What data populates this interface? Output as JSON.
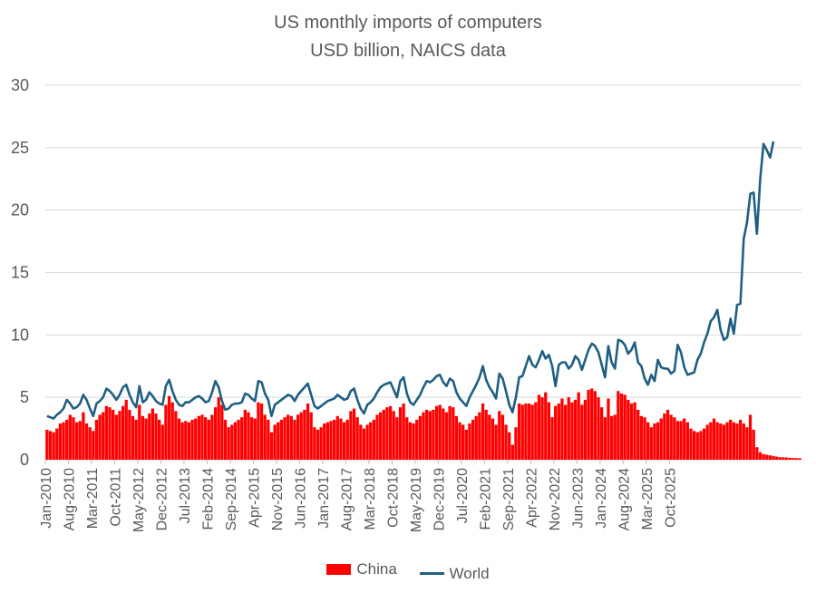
{
  "chart_data": {
    "type": "bar+line",
    "title": "US monthly imports of computers",
    "subtitle": "USD billion, NAICS data",
    "ylim": [
      0,
      30
    ],
    "yticks": [
      0,
      5,
      10,
      15,
      20,
      25,
      30
    ],
    "grid": true,
    "legend_position": "bottom",
    "start": "2010-01",
    "x_tick_labels": [
      "Jan-2010",
      "Aug-2010",
      "Mar-2011",
      "Oct-2011",
      "May-2012",
      "Dec-2012",
      "Jul-2013",
      "Feb-2014",
      "Sep-2014",
      "Apr-2015",
      "Nov-2015",
      "Jun-2016",
      "Jan-2017",
      "Aug-2017",
      "Mar-2018",
      "Oct-2018",
      "May-2019",
      "Dec-2019",
      "Jul-2020",
      "Feb-2021",
      "Sep-2021",
      "Apr-2022",
      "Nov-2022",
      "Jun-2023",
      "Jan-2024",
      "Aug-2024",
      "Mar-2025",
      "Oct-2025"
    ],
    "x_tick_step_months": 7,
    "series": [
      {
        "name": "China",
        "kind": "bar",
        "color": "#ff0000",
        "values": [
          2.4,
          2.3,
          2.2,
          2.5,
          2.9,
          3.0,
          3.2,
          3.6,
          3.4,
          3.0,
          3.1,
          3.8,
          2.9,
          2.6,
          2.3,
          3.2,
          3.6,
          3.8,
          4.3,
          4.2,
          4.0,
          3.6,
          3.9,
          4.3,
          4.8,
          4.0,
          3.5,
          3.2,
          4.4,
          3.5,
          3.3,
          3.7,
          4.1,
          3.7,
          3.2,
          2.8,
          4.4,
          5.1,
          4.6,
          3.9,
          3.3,
          3.0,
          3.1,
          3.0,
          3.2,
          3.3,
          3.5,
          3.6,
          3.4,
          3.2,
          3.6,
          4.2,
          5.0,
          4.4,
          3.2,
          2.6,
          2.8,
          3.0,
          3.2,
          3.4,
          4.0,
          3.8,
          3.4,
          3.3,
          4.6,
          4.5,
          3.6,
          3.2,
          2.2,
          2.8,
          3.0,
          3.2,
          3.4,
          3.6,
          3.5,
          3.2,
          3.6,
          3.8,
          4.0,
          4.5,
          3.8,
          2.6,
          2.4,
          2.6,
          2.9,
          3.0,
          3.1,
          3.2,
          3.5,
          3.3,
          3.0,
          3.2,
          3.9,
          4.1,
          3.4,
          2.8,
          2.5,
          2.8,
          3.0,
          3.2,
          3.6,
          3.8,
          4.0,
          4.2,
          4.3,
          3.9,
          3.4,
          4.2,
          4.5,
          3.4,
          3.0,
          2.9,
          3.2,
          3.5,
          3.8,
          4.0,
          3.9,
          4.0,
          4.3,
          4.4,
          4.1,
          3.8,
          4.3,
          4.2,
          3.5,
          3.0,
          2.8,
          2.4,
          2.9,
          3.2,
          3.5,
          3.8,
          4.5,
          4.0,
          3.6,
          3.3,
          2.8,
          3.9,
          3.6,
          2.8,
          2.2,
          1.2,
          2.6,
          4.5,
          4.4,
          4.5,
          4.5,
          4.4,
          4.6,
          5.2,
          5.0,
          5.4,
          4.6,
          3.4,
          4.3,
          4.5,
          4.9,
          4.4,
          5.0,
          4.6,
          4.8,
          5.4,
          4.4,
          4.8,
          5.6,
          5.7,
          5.5,
          5.0,
          4.2,
          3.4,
          4.9,
          3.5,
          3.6,
          5.5,
          5.3,
          5.2,
          4.8,
          4.5,
          4.6,
          4.0,
          3.5,
          3.4,
          3.0,
          2.6,
          2.9,
          3.0,
          3.3,
          3.7,
          4.0,
          3.6,
          3.4,
          3.1,
          3.1,
          3.3,
          3.0,
          2.5,
          2.3,
          2.2,
          2.3,
          2.5,
          2.8,
          3.0,
          3.3,
          3.0,
          2.9,
          2.8,
          3.0,
          3.2,
          3.0,
          2.9,
          3.2,
          2.9,
          2.6,
          3.6,
          2.4,
          1.0,
          0.6,
          0.45,
          0.4,
          0.35,
          0.3,
          0.25,
          0.2,
          0.2,
          0.18,
          0.15,
          0.14,
          0.13,
          0.12
        ]
      },
      {
        "name": "World",
        "kind": "line",
        "color": "#1f5f82",
        "values": [
          3.5,
          3.4,
          3.3,
          3.6,
          3.8,
          4.1,
          4.8,
          4.5,
          4.1,
          4.2,
          4.5,
          5.2,
          4.8,
          4.1,
          3.5,
          4.5,
          4.7,
          5.0,
          5.7,
          5.5,
          5.2,
          4.8,
          5.2,
          5.8,
          6.0,
          5.2,
          4.6,
          4.2,
          5.9,
          4.6,
          4.8,
          5.4,
          5.1,
          4.7,
          4.5,
          4.4,
          5.9,
          6.4,
          5.5,
          4.8,
          4.4,
          4.3,
          4.6,
          4.6,
          4.8,
          5.0,
          5.1,
          4.9,
          4.6,
          4.7,
          5.4,
          6.3,
          5.8,
          4.7,
          4.0,
          4.1,
          4.4,
          4.5,
          4.5,
          4.6,
          5.3,
          5.2,
          4.9,
          4.7,
          6.3,
          6.2,
          5.3,
          4.8,
          3.5,
          4.4,
          4.6,
          4.8,
          5.0,
          5.2,
          5.1,
          4.7,
          5.2,
          5.5,
          5.8,
          6.1,
          5.2,
          4.3,
          4.1,
          4.3,
          4.5,
          4.7,
          4.8,
          4.9,
          5.2,
          5.0,
          4.8,
          4.9,
          5.5,
          5.7,
          4.8,
          4.1,
          3.7,
          4.4,
          4.6,
          4.9,
          5.4,
          5.8,
          6.0,
          6.1,
          6.2,
          5.6,
          5.0,
          6.3,
          6.6,
          5.3,
          4.6,
          4.4,
          4.8,
          5.2,
          5.8,
          6.3,
          6.2,
          6.4,
          6.7,
          6.8,
          6.2,
          5.9,
          6.5,
          6.3,
          5.4,
          4.9,
          4.6,
          4.3,
          5.0,
          5.5,
          6.0,
          6.6,
          7.5,
          6.4,
          5.8,
          5.4,
          4.9,
          6.9,
          6.5,
          5.5,
          4.4,
          3.8,
          5.0,
          6.6,
          6.7,
          7.5,
          8.3,
          7.6,
          7.4,
          8.0,
          8.7,
          8.1,
          8.4,
          7.5,
          5.9,
          7.6,
          7.8,
          7.8,
          7.3,
          7.6,
          8.3,
          8.0,
          7.2,
          8.0,
          8.8,
          9.3,
          9.1,
          8.6,
          7.6,
          6.6,
          9.1,
          7.8,
          7.3,
          9.6,
          9.5,
          9.2,
          8.5,
          8.8,
          9.4,
          7.8,
          7.5,
          6.5,
          6.0,
          6.8,
          6.3,
          8.0,
          7.4,
          7.3,
          7.3,
          6.9,
          7.1,
          9.2,
          8.6,
          7.4,
          6.8,
          6.9,
          7.0,
          8.0,
          8.5,
          9.4,
          10.1,
          11.1,
          11.4,
          12.0,
          10.4,
          9.6,
          9.8,
          11.3,
          10.1,
          12.4,
          12.5,
          17.7,
          19.0,
          21.3,
          21.4,
          18.1,
          22.5,
          25.3,
          24.8,
          24.2,
          25.5
        ]
      }
    ]
  }
}
